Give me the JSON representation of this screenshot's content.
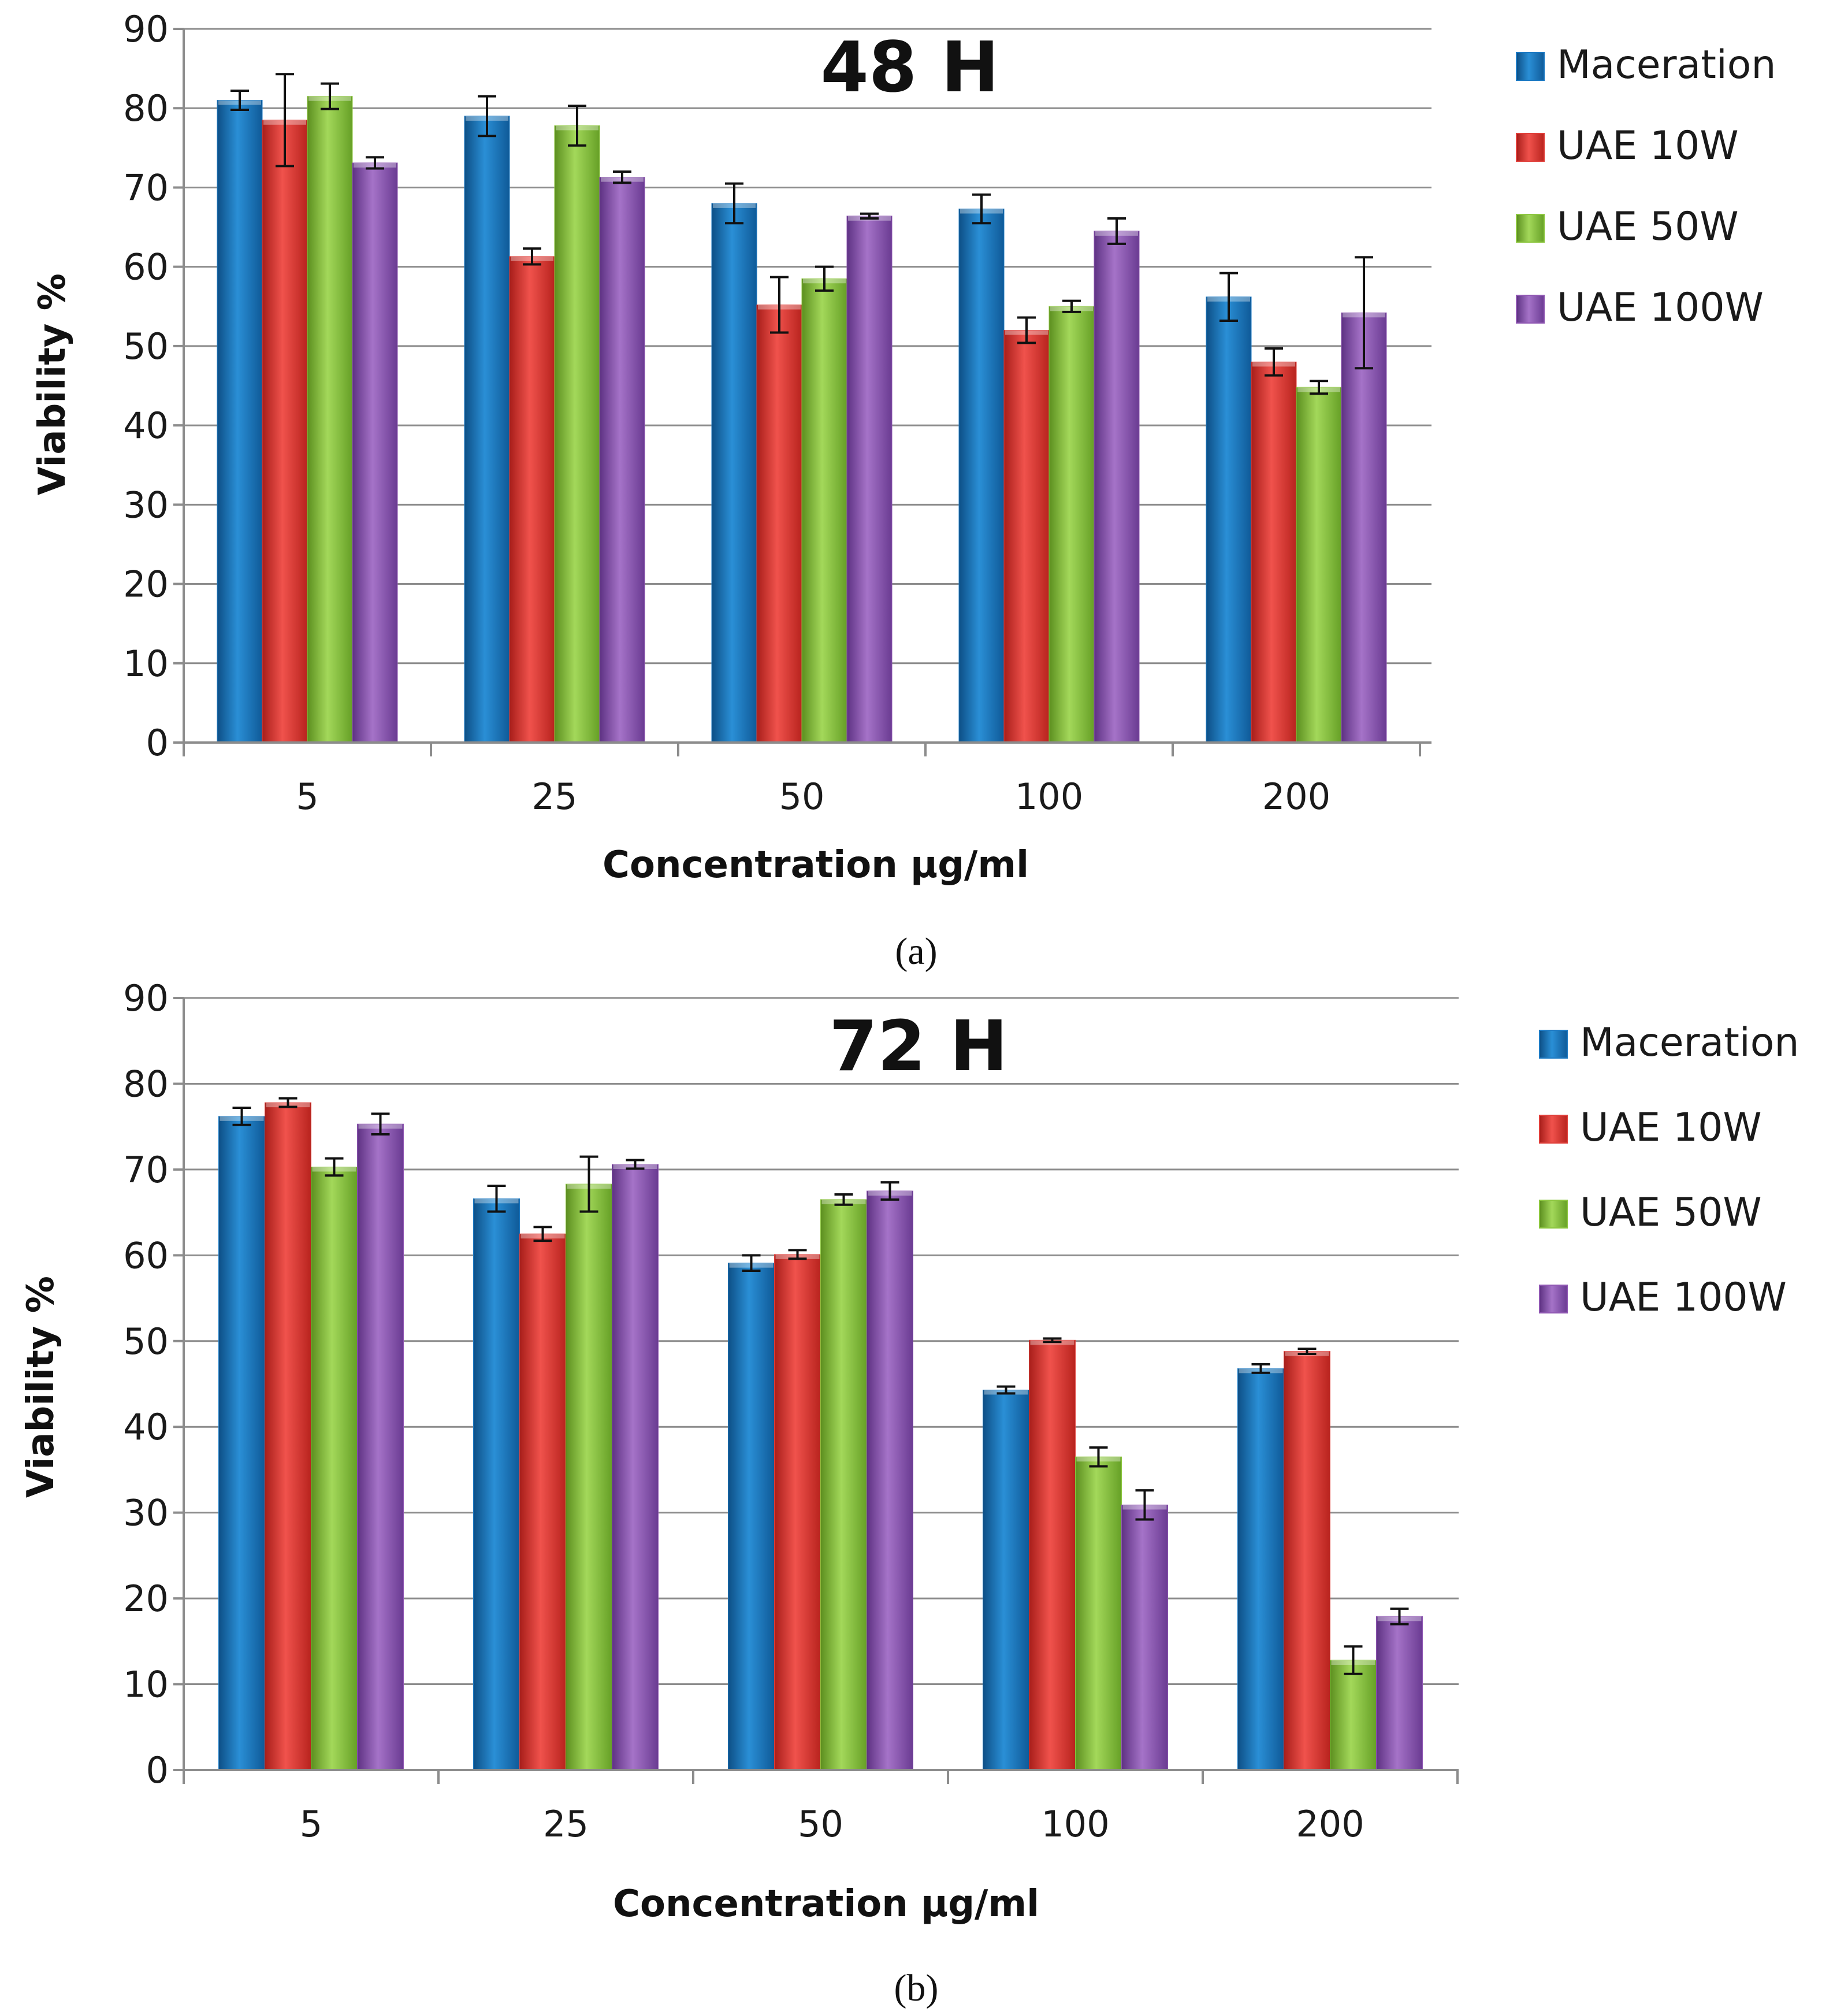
{
  "panels": [
    {
      "caption": "(a)",
      "chart_data": {
        "type": "bar",
        "title": "48 H",
        "xlabel": "Concentration µg/ml",
        "ylabel": "Viability %",
        "ylim": [
          0,
          90
        ],
        "yticks": [
          0,
          10,
          20,
          30,
          40,
          50,
          60,
          70,
          80,
          90
        ],
        "grid": true,
        "legend_position": "right",
        "categories": [
          "5",
          "25",
          "50",
          "100",
          "200"
        ],
        "series": [
          {
            "name": "Maceration",
            "color": "#1f7bc4",
            "values": [
              81,
              79,
              68,
              67.3,
              56.2
            ],
            "errors": [
              1.2,
              2.5,
              2.5,
              1.8,
              3.0
            ]
          },
          {
            "name": "UAE 10W",
            "color": "#e0403b",
            "values": [
              78.5,
              61.3,
              55.2,
              52,
              48
            ],
            "errors": [
              5.8,
              1.0,
              3.5,
              1.6,
              1.7
            ]
          },
          {
            "name": "UAE 50W",
            "color": "#8cc63f",
            "values": [
              81.5,
              77.8,
              58.5,
              55,
              44.8
            ],
            "errors": [
              1.6,
              2.5,
              1.5,
              0.7,
              0.8
            ]
          },
          {
            "name": "UAE 100W",
            "color": "#9058b3",
            "values": [
              73.1,
              71.3,
              66.4,
              64.5,
              54.2
            ],
            "errors": [
              0.7,
              0.7,
              0.3,
              1.6,
              7.0
            ]
          }
        ]
      }
    },
    {
      "caption": "(b)",
      "chart_data": {
        "type": "bar",
        "title": "72 H",
        "xlabel": "Concentration µg/ml",
        "ylabel": "Viability %",
        "ylim": [
          0,
          90
        ],
        "yticks": [
          0,
          10,
          20,
          30,
          40,
          50,
          60,
          70,
          80,
          90
        ],
        "grid": true,
        "legend_position": "right",
        "categories": [
          "5",
          "25",
          "50",
          "100",
          "200"
        ],
        "series": [
          {
            "name": "Maceration",
            "color": "#1f7bc4",
            "values": [
              76.2,
              66.6,
              59.1,
              44.3,
              46.8
            ],
            "errors": [
              1.0,
              1.5,
              0.9,
              0.4,
              0.5
            ]
          },
          {
            "name": "UAE 10W",
            "color": "#e0403b",
            "values": [
              77.8,
              62.5,
              60.1,
              50.1,
              48.8
            ],
            "errors": [
              0.5,
              0.8,
              0.5,
              0.2,
              0.3
            ]
          },
          {
            "name": "UAE 50W",
            "color": "#8cc63f",
            "values": [
              70.3,
              68.3,
              66.5,
              36.5,
              12.8
            ],
            "errors": [
              1.0,
              3.2,
              0.6,
              1.1,
              1.6
            ]
          },
          {
            "name": "UAE 100W",
            "color": "#9058b3",
            "values": [
              75.3,
              70.6,
              67.5,
              30.9,
              17.9
            ],
            "errors": [
              1.2,
              0.5,
              1.0,
              1.7,
              0.9
            ]
          }
        ]
      }
    }
  ]
}
